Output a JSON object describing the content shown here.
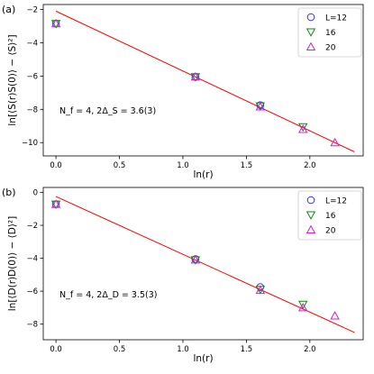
{
  "chart_data": [
    {
      "type": "scatter",
      "panel_label": "(a)",
      "xlabel": "ln(r)",
      "ylabel": "ln[⟨S(r)S(0)⟩ − ⟨S⟩²]",
      "annotation": "N_f = 4,  2Δ_S = 3.6(3)",
      "xlim": [
        -0.1,
        2.42
      ],
      "ylim": [
        -10.8,
        -1.7
      ],
      "xticks": [
        "0.0",
        "0.5",
        "1.0",
        "1.5",
        "2.0"
      ],
      "yticks": [
        "−2",
        "−4",
        "−6",
        "−8",
        "−10"
      ],
      "xtick_values": [
        0.0,
        0.5,
        1.0,
        1.5,
        2.0
      ],
      "ytick_values": [
        -2,
        -4,
        -6,
        -8,
        -10
      ],
      "legend_position": "top-right",
      "series": [
        {
          "name": "L=12",
          "marker": "circle",
          "color": "#3333ff",
          "x": [
            0.0,
            1.0986,
            1.6094
          ],
          "y": [
            -2.85,
            -6.05,
            -7.75
          ]
        },
        {
          "name": "16",
          "marker": "triangle-down",
          "color": "#118811",
          "x": [
            0.0,
            1.0986,
            1.6094,
            1.9459
          ],
          "y": [
            -2.85,
            -6.05,
            -7.8,
            -9.05
          ]
        },
        {
          "name": "20",
          "marker": "triangle-up",
          "color": "#cc22cc",
          "x": [
            0.0,
            1.0986,
            1.6094,
            1.9459,
            2.1972
          ],
          "y": [
            -2.85,
            -6.05,
            -7.85,
            -9.2,
            -10.0
          ]
        }
      ],
      "fit": {
        "color": "#ff0000",
        "x": [
          0.0,
          2.35
        ],
        "y": [
          -2.1,
          -10.55
        ]
      }
    },
    {
      "type": "scatter",
      "panel_label": "(b)",
      "xlabel": "ln(r)",
      "ylabel": "ln[⟨D(r)D(0)⟩ − ⟨D⟩²]",
      "annotation": "N_f = 4,  2Δ_D = 3.5(3)",
      "xlim": [
        -0.1,
        2.42
      ],
      "ylim": [
        -8.95,
        0.3
      ],
      "xticks": [
        "0.0",
        "0.5",
        "1.0",
        "1.5",
        "2.0"
      ],
      "yticks": [
        "0",
        "−2",
        "−4",
        "−6",
        "−8"
      ],
      "xtick_values": [
        0.0,
        0.5,
        1.0,
        1.5,
        2.0
      ],
      "ytick_values": [
        0,
        -2,
        -4,
        -6,
        -8
      ],
      "legend_position": "top-right",
      "series": [
        {
          "name": "L=12",
          "marker": "circle",
          "color": "#3333ff",
          "x": [
            0.0,
            1.0986,
            1.6094
          ],
          "y": [
            -0.72,
            -4.05,
            -5.75
          ]
        },
        {
          "name": "16",
          "marker": "triangle-down",
          "color": "#118811",
          "x": [
            0.0,
            1.0986,
            1.6094,
            1.9459
          ],
          "y": [
            -0.72,
            -4.1,
            -5.9,
            -6.8
          ]
        },
        {
          "name": "20",
          "marker": "triangle-up",
          "color": "#cc22cc",
          "x": [
            0.0,
            1.0986,
            1.6094,
            1.9459,
            2.1972
          ],
          "y": [
            -0.72,
            -4.1,
            -5.95,
            -7.0,
            -7.5
          ]
        }
      ],
      "fit": {
        "color": "#ff0000",
        "x": [
          0.0,
          2.35
        ],
        "y": [
          -0.25,
          -8.5
        ]
      }
    }
  ]
}
